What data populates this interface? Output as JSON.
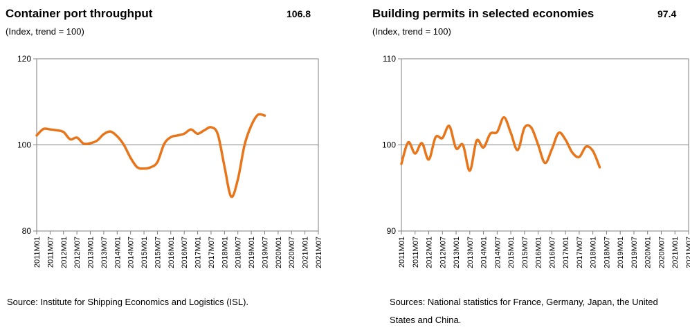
{
  "chart_data": [
    {
      "type": "line",
      "title": "Container port throughput",
      "subtitle": "(Index, trend = 100)",
      "latest_value": "106.8",
      "source": "Source:  Institute for Shipping Economics and Logistics (ISL).",
      "ylim": [
        80,
        120
      ],
      "yticks": [
        "120",
        "100",
        "80"
      ],
      "reference_line": 100,
      "grid": false,
      "categories": [
        "2011M01",
        "2011M07",
        "2012M01",
        "2012M07",
        "2013M01",
        "2013M07",
        "2014M01",
        "2014M07",
        "2015M01",
        "2015M07",
        "2016M01",
        "2016M07",
        "2017M01",
        "2017M07",
        "2018M01",
        "2018M07",
        "2019M01",
        "2019M07",
        "2020M01",
        "2020M07",
        "2021M01",
        "2021M07"
      ],
      "series": [
        {
          "color": "#E8751A",
          "points": [
            [
              0,
              102.2
            ],
            [
              0.5,
              103.7
            ],
            [
              1,
              103.6
            ],
            [
              1.5,
              103.4
            ],
            [
              2,
              103.0
            ],
            [
              2.5,
              101.3
            ],
            [
              3,
              101.7
            ],
            [
              3.5,
              100.3
            ],
            [
              4,
              100.4
            ],
            [
              4.5,
              101.0
            ],
            [
              5,
              102.5
            ],
            [
              5.5,
              103.1
            ],
            [
              6,
              102.0
            ],
            [
              6.5,
              100.0
            ],
            [
              7,
              97.0
            ],
            [
              7.5,
              94.8
            ],
            [
              8,
              94.5
            ],
            [
              8.5,
              94.8
            ],
            [
              9,
              96.0
            ],
            [
              9.5,
              100.2
            ],
            [
              10,
              101.8
            ],
            [
              10.5,
              102.2
            ],
            [
              11,
              102.6
            ],
            [
              11.5,
              103.6
            ],
            [
              12,
              102.6
            ],
            [
              12.5,
              103.4
            ],
            [
              13,
              104.1
            ],
            [
              13.5,
              102.5
            ],
            [
              14,
              95.0
            ],
            [
              14.5,
              88.0
            ],
            [
              15,
              92.0
            ],
            [
              15.5,
              100.0
            ],
            [
              16,
              104.5
            ],
            [
              16.5,
              107.0
            ],
            [
              17,
              106.8
            ]
          ]
        }
      ]
    },
    {
      "type": "line",
      "title": "Building permits in selected economies",
      "subtitle": "(Index, trend = 100)",
      "latest_value": "97.4",
      "source": "Sources: National statistics for France, Germany, Japan, the United States and China.",
      "ylim": [
        90,
        110
      ],
      "yticks": [
        "110",
        "100",
        "90"
      ],
      "reference_line": 100,
      "grid": false,
      "categories": [
        "2011M01",
        "2011M07",
        "2012M01",
        "2012M07",
        "2013M01",
        "2013M07",
        "2014M01",
        "2014M07",
        "2015M01",
        "2015M07",
        "2016M01",
        "2016M07",
        "2017M01",
        "2017M07",
        "2018M01",
        "2018M07",
        "2019M01",
        "2019M07",
        "2020M01",
        "2020M07",
        "2021M01",
        "2021M07"
      ],
      "series": [
        {
          "color": "#E8751A",
          "points": [
            [
              0,
              97.8
            ],
            [
              0.5,
              100.3
            ],
            [
              1,
              99.0
            ],
            [
              1.5,
              100.2
            ],
            [
              2,
              98.3
            ],
            [
              2.5,
              100.9
            ],
            [
              3,
              100.8
            ],
            [
              3.5,
              102.2
            ],
            [
              4,
              99.6
            ],
            [
              4.5,
              100.0
            ],
            [
              5,
              97.0
            ],
            [
              5.5,
              100.5
            ],
            [
              6,
              99.7
            ],
            [
              6.5,
              101.3
            ],
            [
              7,
              101.5
            ],
            [
              7.5,
              103.2
            ],
            [
              8,
              101.4
            ],
            [
              8.5,
              99.4
            ],
            [
              9,
              102.0
            ],
            [
              9.5,
              102.0
            ],
            [
              10,
              100.0
            ],
            [
              10.5,
              97.9
            ],
            [
              11,
              99.5
            ],
            [
              11.5,
              101.4
            ],
            [
              12,
              100.6
            ],
            [
              12.5,
              99.1
            ],
            [
              13,
              98.6
            ],
            [
              13.5,
              99.8
            ],
            [
              14,
              99.3
            ],
            [
              14.5,
              97.4
            ]
          ]
        }
      ]
    }
  ]
}
